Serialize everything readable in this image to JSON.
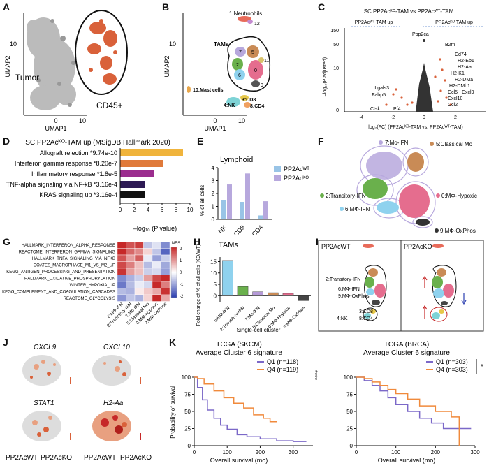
{
  "panels": {
    "A": {
      "letter": "A",
      "ylabel": "UMAP2",
      "xlabel": "UMAP1",
      "tick_y": "10",
      "tick_x0": "0",
      "tick_x1": "10",
      "tumor": "Tumor",
      "cd45": "CD45+"
    },
    "B": {
      "letter": "B",
      "ylabel": "UMAP2",
      "xlabel": "UMAP1",
      "tick_y": "10",
      "tick_x0": "0",
      "tick_x1": "10",
      "neutrophils": "1:Neutrophils",
      "n12": "12",
      "tams": "TAMs",
      "mast": "10:Mast cells",
      "nk": "4:NK",
      "cd8": "3:CD8",
      "cd4": "8:CD4",
      "cluster_nums": [
        "7",
        "5",
        "2",
        "6",
        "0",
        "9",
        "11"
      ]
    },
    "C": {
      "letter": "C",
      "title": "SC PP2Acᴷᴼ-TAM vs PP2Acᵂᵀ-TAM",
      "wt_up": "PP2Acᵂᵀ TAM up",
      "ko_up": "PP2Acᴷᴼ TAM up",
      "ylabel": "–log₁₀(P adjusted)",
      "xlabel": "log₂(FC) (PP2Acᴷᴼ-TAM vs. PP2Acᵂᵀ-TAM)",
      "yticks": [
        "150",
        "50",
        "10",
        "0"
      ],
      "xticks": [
        "-4",
        "-2",
        "0",
        "2"
      ],
      "genes_left": [
        "Ppp2ca",
        "Lgals3",
        "Fabp5",
        "Ctsk",
        "Pf4"
      ],
      "genes_right": [
        "B2m",
        "Cd74",
        "H2-Eb1",
        "H2-Aa",
        "H2-K1",
        "H2-DMa",
        "H2-DMb1",
        "Ccl5",
        "Cxcl9",
        "Cxcl10",
        "Ccl2"
      ]
    },
    "D": {
      "letter": "D",
      "title": "SC PP2Acᴷᴼ-TAM up (MSigDB Hallmark 2020)",
      "xlabel": "–log₁₀ (P value)",
      "xticks": [
        "0",
        "2",
        "4",
        "6",
        "8",
        "10"
      ]
    },
    "E": {
      "letter": "E",
      "title": "Lymphoid",
      "ylabel": "% of all cells",
      "yticks": [
        "0",
        "1",
        "2",
        "3",
        "4"
      ],
      "legend_wt": "PP2Acᵂᵀ",
      "legend_ko": "PP2Acᴷᴼ"
    },
    "F": {
      "letter": "F",
      "labels": [
        "7:Mo-IFN",
        "5:Classical Mo",
        "2:Transitory-IFN",
        "0:MΦ-Hypoxic",
        "6:MΦ-IFN",
        "9:MΦ-OxPhos"
      ]
    },
    "G": {
      "letter": "G",
      "rows": [
        "HALLMARK_INTERFERON_ALPHA_RESPONSE",
        "REACTOME_INTERFERON_GAMMA_SIGNALING",
        "HALLMARK_TNFA_SIGNALING_VIA_NFKB",
        "COATES_MACROPHAGE_M1_VS_M2_UP",
        "KEGG_ANTIGEN_PROCESSING_AND_PRESENTATION",
        "HALLMARK_OXIDATIVE_PHOSPHORYLATION",
        "WINTER_HYPOXIA_UP",
        "KEGG_COMPLEMENT_AND_COAGULATION_CASCADES",
        "REACTOME_GLYCOLYSIS"
      ],
      "cols": [
        "6:MΦ-IFN",
        "2:Transitory-IFN",
        "7:Mo-IFN",
        "5:Classical Mo",
        "0:MΦ-Hypoxic",
        "9:MΦ-OxPhos"
      ],
      "legend_title": "NES",
      "legend_ticks": [
        "2",
        "1",
        "0",
        "-1",
        "-2"
      ]
    },
    "H": {
      "letter": "H",
      "title": "TAMs",
      "ylabel": "Fold change of % of all cells (KO/WT)",
      "xlabel": "Single-cell cluster",
      "yticks": [
        "15",
        "10",
        "5",
        "0"
      ]
    },
    "I": {
      "letter": "I",
      "left_title": "PP2AcWT",
      "right_title": "PP2AcKO",
      "labels": [
        "2:Transitory-IFN",
        "6:MΦ-IFN",
        "9:MΦ-OxPhos",
        "3:CD8",
        "4:NK",
        "8:CD4"
      ]
    },
    "J": {
      "letter": "J",
      "genes": [
        "CXCL9",
        "CXCL10",
        "STAT1",
        "H2-Aa"
      ],
      "bottom": [
        "PP2AcWT",
        "PP2AcKO",
        "PP2AcWT",
        "PP2AcKO"
      ]
    },
    "K": {
      "letter": "K",
      "left": {
        "title": "TCGA (SKCM)",
        "subtitle": "Average Cluster 6 signature",
        "q1": "Q1 (n=118)",
        "q4": "Q4 (n=119)",
        "sig": "****",
        "xticks": [
          "0",
          "100",
          "200",
          "300"
        ]
      },
      "right": {
        "title": "TCGA (BRCA)",
        "subtitle": "Average Cluster 6 signature",
        "q1": "Q1 (n=303)",
        "q4": "Q4 (n=303)",
        "sig": "*",
        "xticks": [
          "0",
          "100",
          "200",
          "300"
        ]
      },
      "ylabel": "Probability of survival",
      "xlabel": "Overall survival (mo)",
      "yticks": [
        "100",
        "75",
        "50",
        "25",
        "0"
      ]
    }
  },
  "chart_data": [
    {
      "type": "bar",
      "panel": "D",
      "orientation": "horizontal",
      "categories": [
        "Allograft rejection *9.74e-10",
        "Interferon gamma response *8.20e-7",
        "Inflammatory response *1.8e-5",
        "TNF-alpha signaling via NF-kB *3.16e-4",
        "KRAS signaling up *3.16e-4"
      ],
      "values": [
        9.0,
        6.1,
        4.8,
        3.5,
        3.5
      ],
      "colors": [
        "#f0b43c",
        "#e07a3a",
        "#9b2d8e",
        "#2d1a54",
        "#111111"
      ],
      "xlim": [
        0,
        10
      ]
    },
    {
      "type": "bar",
      "panel": "E",
      "categories": [
        "NK",
        "CD8",
        "CD4"
      ],
      "series": [
        {
          "name": "PP2Acᵂᵀ",
          "values": [
            1.5,
            1.35,
            0.3
          ],
          "color": "#99c4e6"
        },
        {
          "name": "PP2Acᴷᴼ",
          "values": [
            2.7,
            3.55,
            1.4
          ],
          "color": "#b7a8dd"
        }
      ],
      "ylim": [
        0,
        4
      ]
    },
    {
      "type": "bar",
      "panel": "H",
      "categories": [
        "6:MΦ-IFN",
        "2:Transitory-IFN",
        "7:Mo-IFN",
        "5:Classical Mo",
        "0:MΦ-Hypoxic",
        "9:MΦ-OxPhos"
      ],
      "values": [
        15.5,
        4.0,
        1.7,
        1.3,
        1.0,
        -2.2
      ],
      "colors": [
        "#8fd2ee",
        "#6ab04c",
        "#b59ad8",
        "#c98b56",
        "#e56d8e",
        "#444444"
      ],
      "ylim": [
        -3,
        17
      ]
    },
    {
      "type": "heatmap",
      "panel": "G",
      "values": [
        [
          2.1,
          1.6,
          1.8,
          -0.6,
          -0.3,
          -1.2
        ],
        [
          2.0,
          1.4,
          1.1,
          0.4,
          -0.6,
          -1.6
        ],
        [
          1.6,
          0.9,
          1.5,
          -0.2,
          -1.0,
          -0.5
        ],
        [
          1.7,
          1.2,
          0.6,
          -0.7,
          -0.2,
          -0.9
        ],
        [
          1.9,
          0.9,
          0.6,
          -0.5,
          -0.4,
          -1.0
        ],
        [
          -1.2,
          -0.8,
          -0.5,
          0.9,
          1.7,
          2.0
        ],
        [
          -1.4,
          -0.7,
          -0.2,
          -0.4,
          2.1,
          1.2
        ],
        [
          -0.7,
          -0.8,
          0.2,
          0.5,
          0.8,
          1.9
        ],
        [
          -1.1,
          -0.6,
          -0.8,
          0.4,
          2.0,
          0.8
        ]
      ],
      "range": [
        -2,
        2
      ]
    },
    {
      "type": "line",
      "panel": "K-left",
      "series": [
        {
          "name": "Q1 (n=118)",
          "color": "#7b68c8",
          "x": [
            0,
            10,
            25,
            40,
            60,
            80,
            100,
            130,
            160,
            200,
            250,
            300,
            340
          ],
          "y": [
            100,
            85,
            67,
            52,
            40,
            30,
            24,
            16,
            13,
            10,
            7,
            6,
            6
          ]
        },
        {
          "name": "Q4 (n=119)",
          "color": "#f08a3c",
          "x": [
            0,
            10,
            30,
            60,
            90,
            120,
            150,
            180,
            210,
            230,
            250
          ],
          "y": [
            100,
            98,
            90,
            80,
            70,
            62,
            55,
            45,
            40,
            35,
            35
          ]
        }
      ],
      "xlim": [
        0,
        360
      ],
      "ylim": [
        0,
        100
      ]
    },
    {
      "type": "line",
      "panel": "K-right",
      "series": [
        {
          "name": "Q1 (n=303)",
          "color": "#7b68c8",
          "x": [
            0,
            20,
            40,
            60,
            80,
            100,
            130,
            160,
            190,
            220,
            260,
            290
          ],
          "y": [
            100,
            95,
            88,
            80,
            70,
            60,
            50,
            40,
            33,
            25,
            25,
            25
          ]
        },
        {
          "name": "Q4 (n=303)",
          "color": "#f08a3c",
          "x": [
            0,
            20,
            40,
            60,
            80,
            100,
            130,
            160,
            200,
            240,
            250,
            260
          ],
          "y": [
            100,
            98,
            93,
            88,
            82,
            76,
            68,
            58,
            50,
            42,
            42,
            0
          ]
        }
      ],
      "xlim": [
        0,
        300
      ],
      "ylim": [
        0,
        100
      ]
    }
  ]
}
